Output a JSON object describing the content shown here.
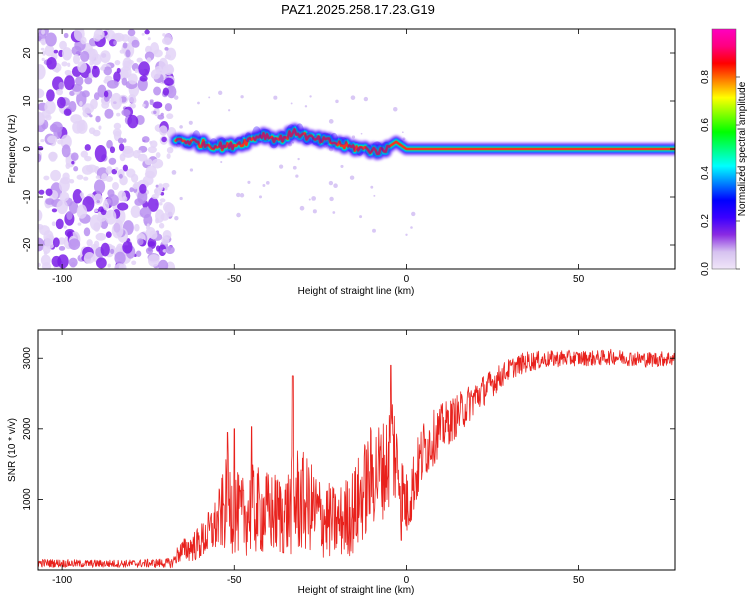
{
  "title": "PAZ1.2025.258.17.23.G19",
  "chart_data": [
    {
      "type": "heatmap",
      "name": "spectrogram",
      "xlabel": "Height of straight line (km)",
      "ylabel": "Frequency (Hz)",
      "xlim": [
        -107,
        78
      ],
      "ylim": [
        -25,
        25
      ],
      "xticks": [
        -100,
        -50,
        0,
        50
      ],
      "xtick_labels": [
        "-100",
        "-50",
        "0",
        "50"
      ],
      "yticks": [
        -20,
        -10,
        0,
        10,
        20
      ],
      "ytick_labels": [
        "-20",
        "-10",
        "0",
        "10",
        "20"
      ],
      "ridge": {
        "x": [
          -67,
          -62,
          -57,
          -52,
          -47,
          -42,
          -37,
          -32,
          -27,
          -22,
          -17,
          -12,
          -7,
          -3,
          0,
          10,
          20,
          40,
          60,
          78
        ],
        "freq": [
          2.0,
          1.5,
          0.8,
          0.5,
          1.5,
          3.0,
          2.0,
          3.5,
          2.0,
          1.5,
          0.5,
          0.0,
          -0.5,
          1.5,
          0.0,
          0.0,
          0.0,
          0.0,
          0.0,
          0.0
        ]
      },
      "noise_region_km": [
        -107,
        -68
      ],
      "colorbar": {
        "label": "Normalized spectral amplitude",
        "range": [
          0,
          1
        ],
        "ticks": [
          0.0,
          0.2,
          0.4,
          0.6,
          0.8
        ],
        "tick_labels": [
          "0.0",
          "0.2",
          "0.4",
          "0.6",
          "0.8"
        ],
        "colormap": [
          "#f0e6f8",
          "#d6c2f0",
          "#8a2be2",
          "#3b00ff",
          "#0000ff",
          "#0080ff",
          "#00ffff",
          "#00ff80",
          "#00ff00",
          "#80ff00",
          "#ffff00",
          "#ff8000",
          "#ff0000",
          "#ff0080",
          "#ff00c0"
        ]
      }
    },
    {
      "type": "line",
      "name": "snr",
      "color": "#e8211c",
      "xlabel": "Height of straight line (km)",
      "ylabel": "SNR (10 * v/v)",
      "xlim": [
        -107,
        78
      ],
      "ylim": [
        0,
        3400
      ],
      "xticks": [
        -100,
        -50,
        0,
        50
      ],
      "xtick_labels": [
        "-100",
        "-50",
        "0",
        "50"
      ],
      "yticks": [
        1000,
        2000,
        3000
      ],
      "ytick_labels": [
        "1000",
        "2000",
        "3000"
      ],
      "envelope": {
        "x": [
          -107,
          -95,
          -80,
          -68,
          -66,
          -60,
          -55,
          -52,
          -48,
          -45,
          -40,
          -35,
          -32,
          -28,
          -25,
          -20,
          -15,
          -10,
          -6,
          -4,
          -2,
          0,
          5,
          10,
          15,
          20,
          25,
          30,
          35,
          40,
          45,
          50,
          55,
          60,
          65,
          70,
          78
        ],
        "mean": [
          100,
          90,
          90,
          100,
          250,
          380,
          650,
          950,
          750,
          850,
          800,
          780,
          1000,
          900,
          750,
          650,
          850,
          1350,
          1450,
          1800,
          1300,
          900,
          1700,
          2000,
          2200,
          2450,
          2650,
          2850,
          2950,
          2980,
          3000,
          3000,
          3000,
          3020,
          3000,
          2980,
          3000
        ],
        "noise": [
          60,
          55,
          55,
          70,
          150,
          250,
          400,
          700,
          550,
          650,
          600,
          600,
          800,
          650,
          600,
          500,
          650,
          750,
          700,
          900,
          500,
          500,
          450,
          350,
          300,
          250,
          200,
          150,
          150,
          120,
          120,
          110,
          110,
          110,
          110,
          110,
          110
        ]
      },
      "spikes": [
        {
          "x": -52,
          "y": 1950
        },
        {
          "x": -50,
          "y": 2000
        },
        {
          "x": -45,
          "y": 2030
        },
        {
          "x": -33,
          "y": 2750
        },
        {
          "x": -4.5,
          "y": 2900
        },
        {
          "x": -1.5,
          "y": 420
        }
      ]
    }
  ]
}
